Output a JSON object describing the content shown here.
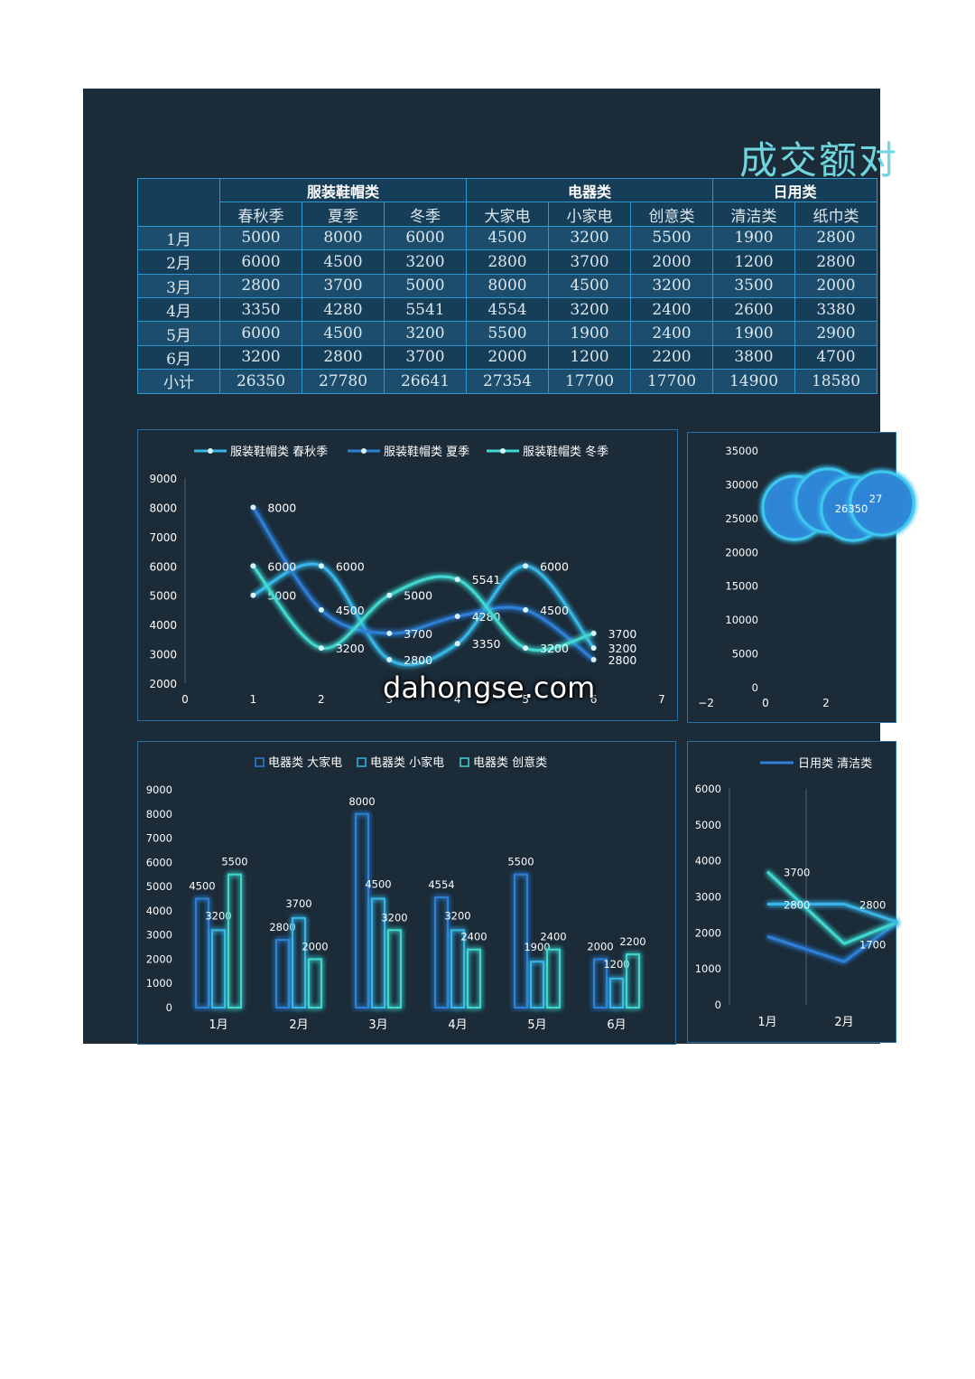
{
  "title": "成交额对",
  "table": {
    "groups": [
      "服装鞋帽类",
      "电器类",
      "日用类"
    ],
    "subheaders": [
      "春秋季",
      "夏季",
      "冬季",
      "大家电",
      "小家电",
      "创意类",
      "清洁类",
      "纸巾类"
    ],
    "rows": [
      {
        "label": "1月",
        "values": [
          "5000",
          "8000",
          "6000",
          "4500",
          "3200",
          "5500",
          "1900",
          "2800"
        ]
      },
      {
        "label": "2月",
        "values": [
          "6000",
          "4500",
          "3200",
          "2800",
          "3700",
          "2000",
          "1200",
          "2800"
        ]
      },
      {
        "label": "3月",
        "values": [
          "2800",
          "3700",
          "5000",
          "8000",
          "4500",
          "3200",
          "3500",
          "2000"
        ]
      },
      {
        "label": "4月",
        "values": [
          "3350",
          "4280",
          "5541",
          "4554",
          "3200",
          "2400",
          "2600",
          "3380"
        ]
      },
      {
        "label": "5月",
        "values": [
          "6000",
          "4500",
          "3200",
          "5500",
          "1900",
          "2400",
          "1900",
          "2900"
        ]
      },
      {
        "label": "6月",
        "values": [
          "3200",
          "2800",
          "3700",
          "2000",
          "1200",
          "2200",
          "3800",
          "4700"
        ]
      },
      {
        "label": "小计",
        "values": [
          "26350",
          "27780",
          "26641",
          "27354",
          "17700",
          "17700",
          "14900",
          "18580"
        ]
      }
    ]
  },
  "watermark": "dahongse.com",
  "chart_data": [
    {
      "type": "scatter",
      "subtype": "smooth-line",
      "legend_position": "top",
      "x": [
        1,
        2,
        3,
        4,
        5,
        6
      ],
      "series": [
        {
          "name": "服装鞋帽类 春秋季",
          "values": [
            5000,
            6000,
            2800,
            3350,
            6000,
            3200
          ],
          "color": "#38b6e8"
        },
        {
          "name": "服装鞋帽类 夏季",
          "values": [
            8000,
            4500,
            3700,
            4280,
            4500,
            2800
          ],
          "color": "#2f7fd6"
        },
        {
          "name": "服装鞋帽类 冬季",
          "values": [
            6000,
            3200,
            5000,
            5541,
            3200,
            3700
          ],
          "color": "#40d8d0"
        }
      ],
      "xlim": [
        0,
        7
      ],
      "ylim": [
        2000,
        9000
      ],
      "x_ticks": [
        0,
        1,
        2,
        3,
        4,
        5,
        6,
        7
      ],
      "y_ticks": [
        2000,
        3000,
        4000,
        5000,
        6000,
        7000,
        8000,
        9000
      ],
      "grid": false
    },
    {
      "type": "bubble",
      "x_ticks": [
        -2,
        0,
        2
      ],
      "y_ticks": [
        0,
        5000,
        10000,
        15000,
        20000,
        25000,
        30000,
        35000
      ],
      "ylim": [
        0,
        35000
      ],
      "labels": [
        "26350",
        "27"
      ],
      "color": "#2f86d6"
    },
    {
      "type": "bar",
      "legend_position": "top",
      "categories": [
        "1月",
        "2月",
        "3月",
        "4月",
        "5月",
        "6月"
      ],
      "series": [
        {
          "name": "电器类 大家电",
          "values": [
            4500,
            2800,
            8000,
            4554,
            5500,
            2000
          ],
          "color": "#2f7fd6"
        },
        {
          "name": "电器类 小家电",
          "values": [
            3200,
            3700,
            4500,
            3200,
            1900,
            1200
          ],
          "color": "#38b6e8"
        },
        {
          "name": "电器类 创意类",
          "values": [
            5500,
            2000,
            3200,
            2400,
            2400,
            2200
          ],
          "color": "#40d8d0"
        }
      ],
      "ylim": [
        0,
        9000
      ],
      "y_ticks": [
        0,
        1000,
        2000,
        3000,
        4000,
        5000,
        6000,
        7000,
        8000,
        9000
      ],
      "grid": false
    },
    {
      "type": "line",
      "legend": "日用类 清洁类",
      "categories": [
        "1月",
        "2月"
      ],
      "y_ticks": [
        0,
        1000,
        2000,
        3000,
        4000,
        5000,
        6000
      ],
      "ylim": [
        0,
        6000
      ],
      "series": [
        {
          "values": [
            1900,
            1200
          ],
          "color": "#2f7fd6"
        },
        {
          "values": [
            3700,
            1700
          ],
          "color": "#40d8d0"
        },
        {
          "values": [
            2800,
            2800
          ],
          "color": "#38b6e8"
        }
      ],
      "point_labels": [
        "3700",
        "2800",
        "1700",
        "2800"
      ]
    }
  ]
}
